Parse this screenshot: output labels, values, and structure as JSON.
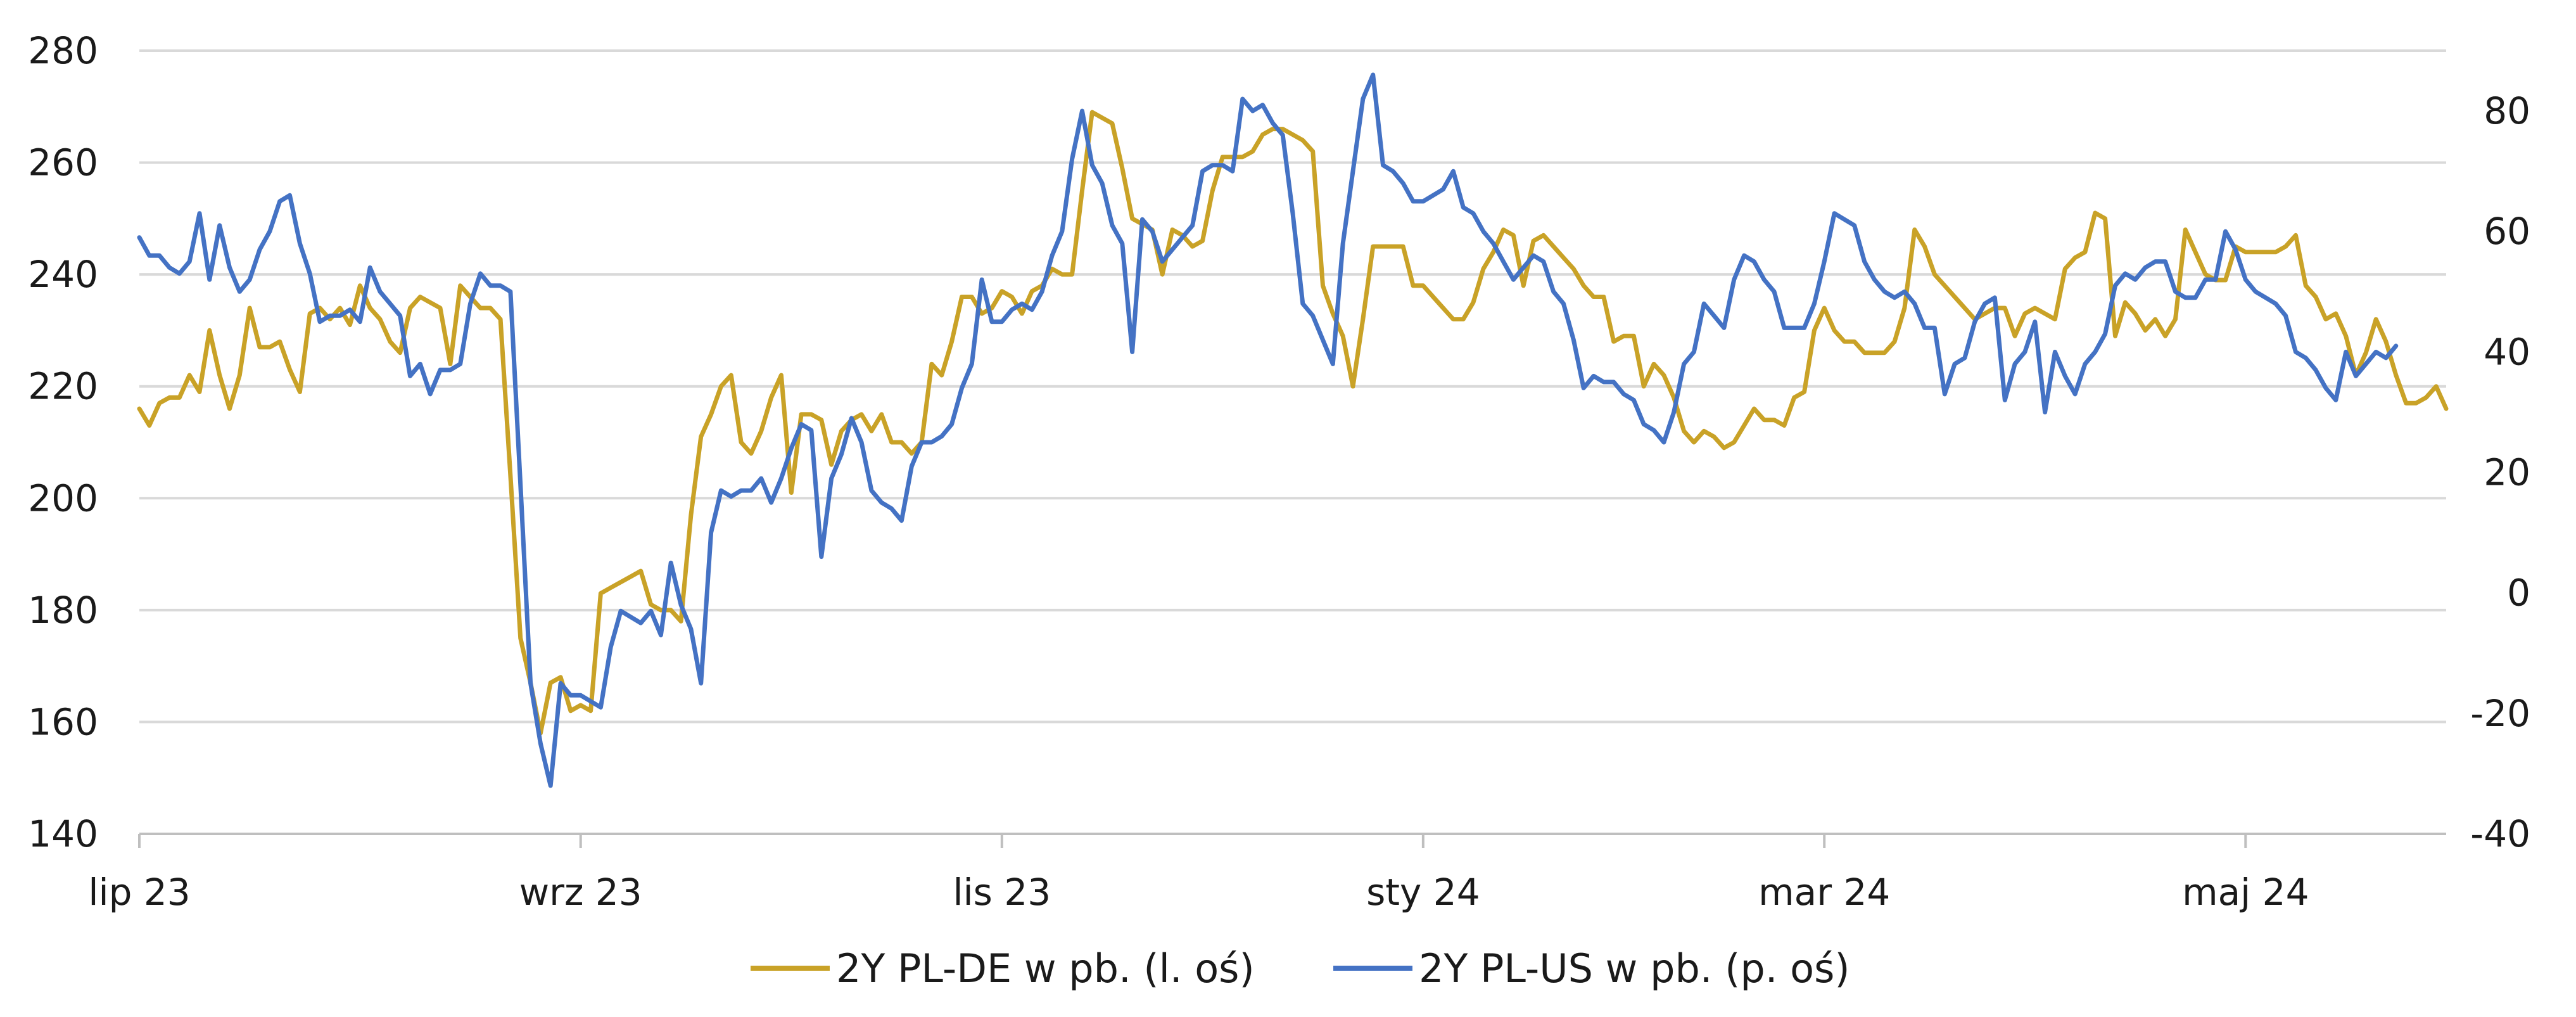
{
  "chart_data": {
    "type": "line",
    "title": "",
    "x_tick_labels": [
      "lip 23",
      "wrz 23",
      "lis 23",
      "sty 24",
      "mar 24",
      "maj 24"
    ],
    "left_axis": {
      "ylim": [
        140,
        280
      ],
      "ticks": [
        140,
        160,
        180,
        200,
        220,
        240,
        260,
        280
      ]
    },
    "right_axis": {
      "ylim": [
        -40,
        90
      ],
      "ticks": [
        -40,
        -20,
        0,
        20,
        40,
        60,
        80
      ]
    },
    "grid": true,
    "legend_position": "bottom",
    "series": [
      {
        "name": "2Y PL-DE w pb. (l. oś)",
        "axis": "left",
        "color": "#C9A227",
        "values": [
          216,
          213,
          217,
          218,
          218,
          222,
          219,
          230,
          222,
          216,
          222,
          234,
          227,
          227,
          228,
          223,
          219,
          233,
          234,
          232,
          234,
          231,
          238,
          234,
          232,
          228,
          226,
          234,
          236,
          235,
          234,
          224,
          238,
          236,
          234,
          234,
          232,
          204,
          175,
          167,
          158,
          167,
          168,
          162,
          163,
          162,
          183,
          184,
          185,
          186,
          187,
          181,
          180,
          180,
          178,
          197,
          211,
          215,
          220,
          222,
          210,
          208,
          212,
          218,
          222,
          201,
          215,
          215,
          214,
          206,
          212,
          214,
          215,
          212,
          215,
          210,
          210,
          208,
          210,
          224,
          222,
          228,
          236,
          236,
          233,
          234,
          237,
          236,
          233,
          237,
          238,
          241,
          240,
          240,
          255,
          269,
          268,
          267,
          259,
          250,
          249,
          248,
          240,
          248,
          247,
          245,
          246,
          255,
          261,
          261,
          261,
          262,
          265,
          266,
          266,
          265,
          264,
          262,
          238,
          233,
          229,
          220,
          232,
          245,
          245,
          245,
          245,
          238,
          238,
          236,
          234,
          232,
          232,
          235,
          241,
          244,
          248,
          247,
          238,
          246,
          247,
          245,
          243,
          241,
          238,
          236,
          236,
          228,
          229,
          229,
          220,
          224,
          222,
          218,
          212,
          210,
          212,
          211,
          209,
          210,
          213,
          216,
          214,
          214,
          213,
          218,
          219,
          230,
          234,
          230,
          228,
          228,
          226,
          226,
          226,
          228,
          234,
          248,
          245,
          240,
          238,
          236,
          234,
          232,
          233,
          234,
          234,
          229,
          233,
          234,
          233,
          232,
          241,
          243,
          244,
          251,
          250,
          229,
          235,
          233,
          230,
          232,
          229,
          232,
          248,
          244,
          240,
          239,
          239,
          245,
          244,
          244,
          244,
          244,
          245,
          247,
          238,
          236,
          232,
          233,
          229,
          222,
          226,
          232,
          228,
          222,
          217,
          217,
          218,
          220,
          216
        ]
      },
      {
        "name": "2Y PL-US w pb. (p. oś)",
        "axis": "right",
        "color": "#4472C4",
        "values": [
          59,
          56,
          56,
          54,
          53,
          55,
          63,
          52,
          61,
          54,
          50,
          52,
          57,
          60,
          65,
          66,
          58,
          53,
          45,
          46,
          46,
          47,
          45,
          54,
          50,
          48,
          46,
          36,
          38,
          33,
          37,
          37,
          38,
          48,
          53,
          51,
          51,
          50,
          18,
          -15,
          -25,
          -32,
          -15,
          -17,
          -17,
          -18,
          -19,
          -9,
          -3,
          -4,
          -5,
          -3,
          -7,
          5,
          -2,
          -6,
          -15,
          10,
          17,
          16,
          17,
          17,
          19,
          15,
          19,
          24,
          28,
          27,
          6,
          19,
          23,
          29,
          25,
          17,
          15,
          14,
          12,
          21,
          25,
          25,
          26,
          28,
          34,
          38,
          52,
          45,
          45,
          47,
          48,
          47,
          50,
          56,
          60,
          72,
          80,
          71,
          68,
          61,
          58,
          40,
          62,
          60,
          55,
          57,
          59,
          61,
          70,
          71,
          71,
          70,
          82,
          80,
          81,
          78,
          76,
          63,
          48,
          46,
          42,
          38,
          58,
          70,
          82,
          86,
          71,
          70,
          68,
          65,
          65,
          66,
          67,
          70,
          64,
          63,
          60,
          58,
          55,
          52,
          54,
          56,
          55,
          50,
          48,
          42,
          34,
          36,
          35,
          35,
          33,
          32,
          28,
          27,
          25,
          30,
          38,
          40,
          48,
          46,
          44,
          52,
          56,
          55,
          52,
          50,
          44,
          44,
          44,
          48,
          55,
          63,
          62,
          61,
          55,
          52,
          50,
          49,
          50,
          48,
          44,
          44,
          33,
          38,
          39,
          45,
          48,
          49,
          32,
          38,
          40,
          45,
          30,
          40,
          36,
          33,
          38,
          40,
          43,
          51,
          53,
          52,
          54,
          55,
          55,
          50,
          49,
          49,
          52,
          52,
          60,
          57,
          52,
          50,
          49,
          48,
          46,
          40,
          39,
          37,
          34,
          32,
          40,
          36,
          38,
          40,
          39,
          41
        ]
      }
    ]
  }
}
